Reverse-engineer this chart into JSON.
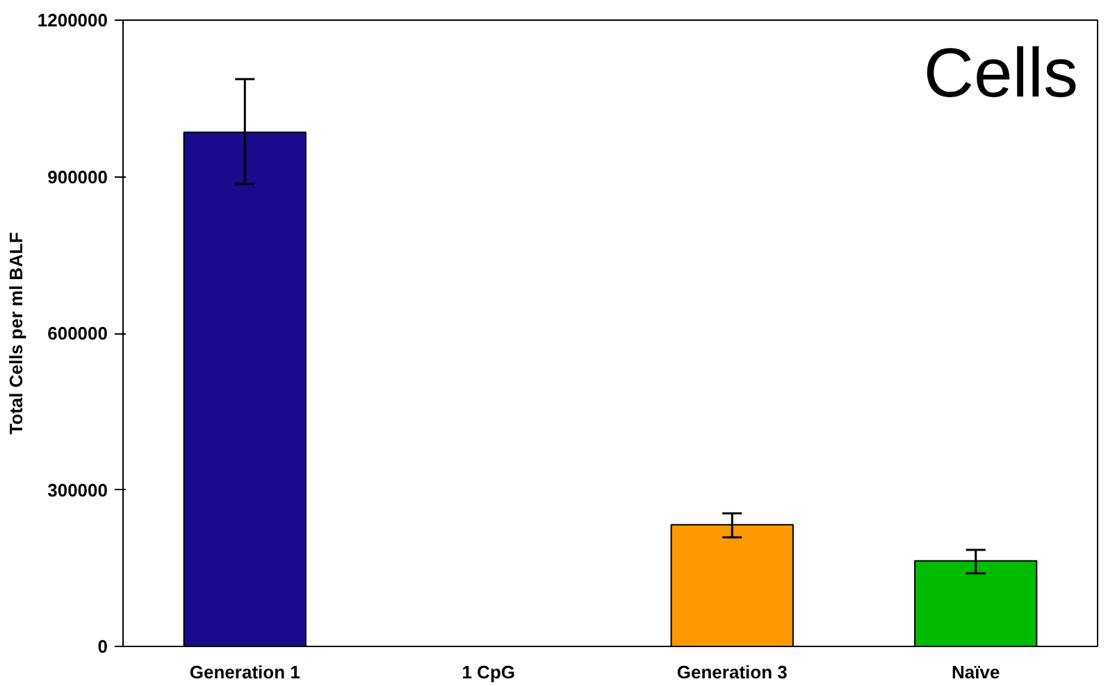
{
  "chart_data": {
    "type": "bar",
    "ylabel": "Total Cells per ml BALF",
    "categories": [
      "Generation 1",
      "1 CpG",
      "Generation 3",
      "Naïve"
    ],
    "values": [
      985000,
      null,
      233000,
      164000
    ],
    "colors": [
      "#1a0a8c",
      "#1a0a8c",
      "#ff9900",
      "#00bb00"
    ],
    "errors": [
      [
        886000,
        1087000
      ],
      null,
      [
        209000,
        255000
      ],
      [
        140000,
        185000
      ]
    ],
    "ylim": [
      0,
      1200000
    ],
    "yticks": [
      0,
      300000,
      600000,
      900000,
      1200000
    ],
    "annotations": [
      "Cells"
    ]
  }
}
